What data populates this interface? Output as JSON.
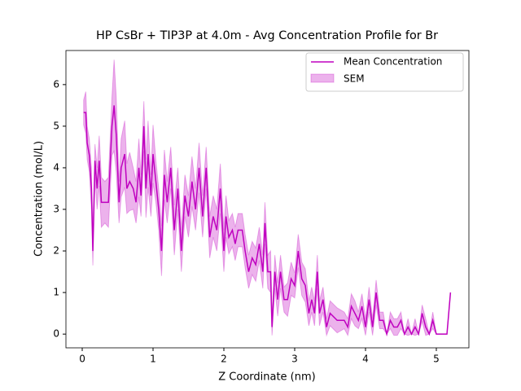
{
  "chart_data": {
    "type": "line",
    "title": "HP CsBr + TIP3P at 4.0m - Avg Concentration Profile for Br",
    "x_label": "Z Coordinate (nm)",
    "y_label": "Concentration (mol/L)",
    "x": [
      0.02,
      0.05,
      0.07,
      0.1,
      0.13,
      0.15,
      0.18,
      0.21,
      0.24,
      0.27,
      0.32,
      0.37,
      0.42,
      0.45,
      0.48,
      0.52,
      0.55,
      0.6,
      0.63,
      0.67,
      0.72,
      0.76,
      0.8,
      0.83,
      0.87,
      0.9,
      0.93,
      0.97,
      1.0,
      1.04,
      1.08,
      1.12,
      1.16,
      1.2,
      1.25,
      1.3,
      1.35,
      1.4,
      1.45,
      1.5,
      1.55,
      1.6,
      1.65,
      1.7,
      1.75,
      1.8,
      1.85,
      1.9,
      1.95,
      2.0,
      2.03,
      2.07,
      2.12,
      2.16,
      2.2,
      2.26,
      2.3,
      2.35,
      2.4,
      2.45,
      2.5,
      2.55,
      2.58,
      2.62,
      2.66,
      2.68,
      2.72,
      2.76,
      2.8,
      2.85,
      2.9,
      2.95,
      3.0,
      3.05,
      3.1,
      3.15,
      3.2,
      3.24,
      3.28,
      3.32,
      3.35,
      3.4,
      3.45,
      3.5,
      3.6,
      3.7,
      3.75,
      3.8,
      3.85,
      3.9,
      3.95,
      4.0,
      4.05,
      4.1,
      4.15,
      4.2,
      4.25,
      4.3,
      4.35,
      4.4,
      4.45,
      4.5,
      4.55,
      4.6,
      4.65,
      4.7,
      4.75,
      4.8,
      4.85,
      4.9,
      4.95,
      5.0,
      5.1,
      5.15,
      5.2
    ],
    "series": [
      {
        "name": "Mean Concentration",
        "color": "#bf00bf",
        "values": [
          5.33,
          5.33,
          4.6,
          4.3,
          3.5,
          2.0,
          4.17,
          3.5,
          4.17,
          3.17,
          3.17,
          3.17,
          5.0,
          5.5,
          4.8,
          3.17,
          4.0,
          4.33,
          3.5,
          3.67,
          3.5,
          3.17,
          4.0,
          3.33,
          5.0,
          3.5,
          4.33,
          3.33,
          4.33,
          3.67,
          3.0,
          2.0,
          3.83,
          3.17,
          4.0,
          2.5,
          3.5,
          2.0,
          3.33,
          2.83,
          3.67,
          3.0,
          4.0,
          2.83,
          4.0,
          2.33,
          2.83,
          2.5,
          3.5,
          2.0,
          2.83,
          2.33,
          2.5,
          2.17,
          2.5,
          2.5,
          2.0,
          1.5,
          1.83,
          1.67,
          2.17,
          1.5,
          2.67,
          1.5,
          1.5,
          0.17,
          1.5,
          0.83,
          1.5,
          0.83,
          0.83,
          1.33,
          1.17,
          2.0,
          1.33,
          1.17,
          0.5,
          0.83,
          0.5,
          1.5,
          0.5,
          0.83,
          0.17,
          0.5,
          0.33,
          0.33,
          0.17,
          0.67,
          0.5,
          0.33,
          0.67,
          0.17,
          0.83,
          0.17,
          1.0,
          0.33,
          0.33,
          0.0,
          0.33,
          0.17,
          0.17,
          0.33,
          0.0,
          0.17,
          0.0,
          0.17,
          0.0,
          0.5,
          0.17,
          0.0,
          0.33,
          0.0,
          0.0,
          0.0,
          1.0
        ]
      },
      {
        "name": "SEM",
        "color": "#bf00bf",
        "values": [
          0.3,
          0.5,
          0.4,
          0.4,
          0.5,
          0.35,
          0.4,
          0.5,
          0.6,
          0.6,
          0.5,
          0.6,
          0.7,
          1.1,
          0.9,
          0.5,
          0.7,
          0.8,
          0.6,
          0.7,
          0.5,
          0.5,
          0.7,
          0.5,
          0.6,
          0.7,
          0.8,
          0.5,
          0.7,
          0.5,
          0.5,
          0.6,
          0.6,
          0.5,
          0.5,
          0.6,
          0.5,
          0.5,
          0.5,
          0.5,
          0.6,
          0.5,
          0.6,
          0.5,
          0.5,
          0.5,
          0.5,
          0.5,
          0.6,
          0.5,
          0.5,
          0.4,
          0.4,
          0.4,
          0.4,
          0.4,
          0.4,
          0.4,
          0.4,
          0.4,
          0.4,
          0.4,
          0.5,
          0.4,
          0.5,
          0.2,
          0.4,
          0.4,
          0.4,
          0.3,
          0.4,
          0.4,
          0.3,
          0.4,
          0.4,
          0.4,
          0.3,
          0.3,
          0.3,
          0.4,
          0.3,
          0.3,
          0.2,
          0.3,
          0.3,
          0.2,
          0.2,
          0.3,
          0.3,
          0.2,
          0.3,
          0.2,
          0.3,
          0.2,
          0.3,
          0.2,
          0.2,
          0.0,
          0.2,
          0.2,
          0.2,
          0.2,
          0.0,
          0.2,
          0.0,
          0.2,
          0.0,
          0.2,
          0.2,
          0.0,
          0.2,
          0.0,
          0.0,
          0.0,
          0.0
        ]
      }
    ],
    "xlim": [
      -0.23,
      5.46
    ],
    "xticks": [
      0,
      1,
      2,
      3,
      4,
      5
    ],
    "ylim": [
      -0.33,
      6.82
    ],
    "yticks": [
      0,
      1,
      2,
      3,
      4,
      5,
      6
    ],
    "legend": "upper right"
  }
}
